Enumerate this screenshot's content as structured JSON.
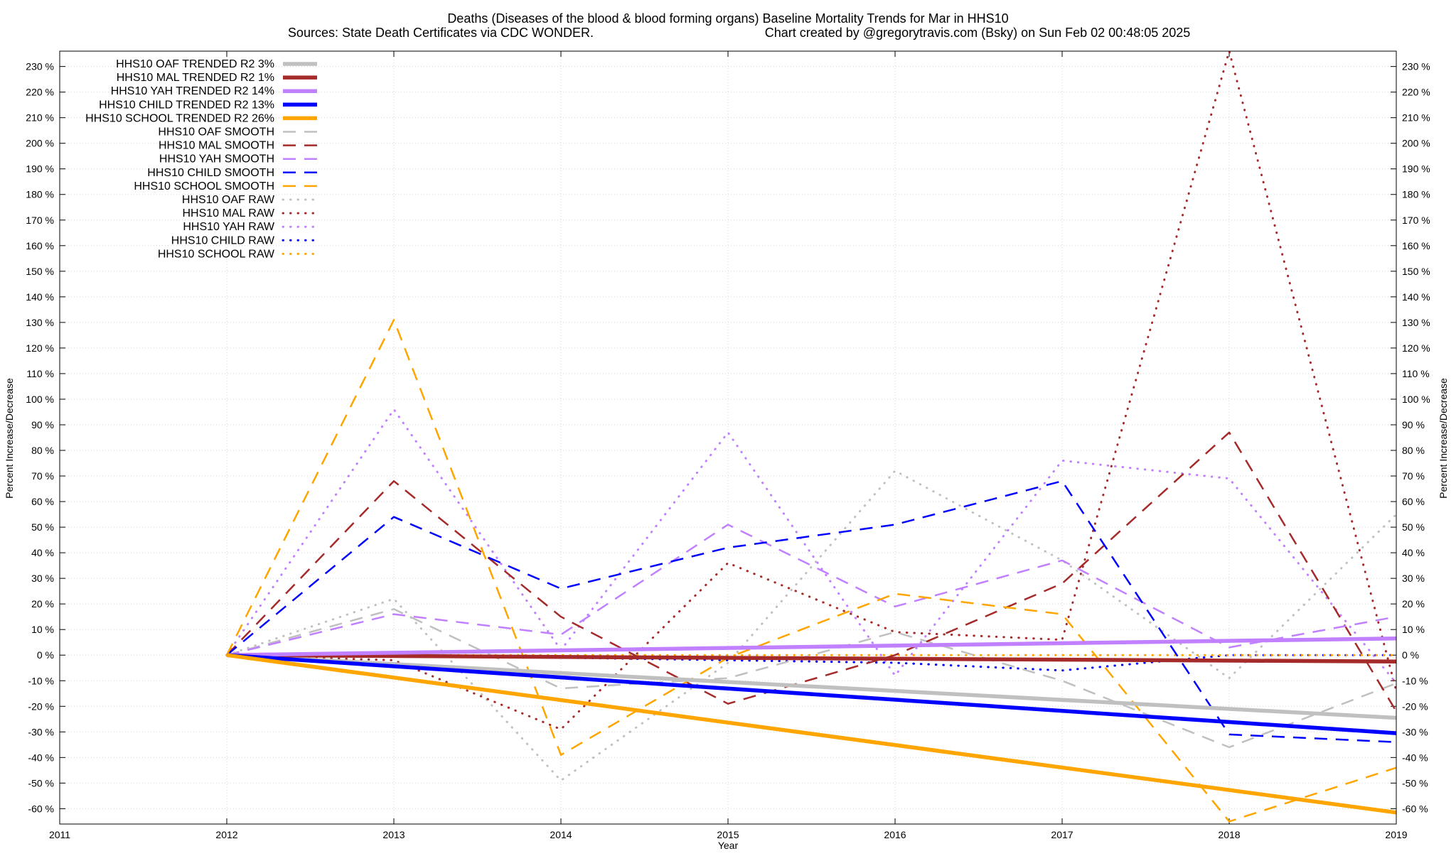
{
  "chart_data": {
    "type": "line",
    "title": "Deaths (Diseases of the blood & blood forming organs)  Baseline Mortality Trends for Mar in HHS10",
    "subtitle_left": "Sources: State Death Certificates via CDC WONDER.",
    "subtitle_right": "Chart created by @gregorytravis.com (Bsky) on Sun Feb 02 00:48:05 2025",
    "xlabel": "Year",
    "ylabel": "Percent Increase/Decrease",
    "ylabel_right": "Percent Increase/Decrease",
    "xlim": [
      2011,
      2019
    ],
    "ylim": [
      -66,
      236
    ],
    "x_ticks": [
      2011,
      2012,
      2013,
      2014,
      2015,
      2016,
      2017,
      2018,
      2019
    ],
    "y_ticks": [
      -60,
      -50,
      -40,
      -30,
      -20,
      -10,
      0,
      10,
      20,
      30,
      40,
      50,
      60,
      70,
      80,
      90,
      100,
      110,
      120,
      130,
      140,
      150,
      160,
      170,
      180,
      190,
      200,
      210,
      220,
      230
    ],
    "y_tick_suffix": " %",
    "grid": true,
    "legend_position": "top-left",
    "series": [
      {
        "name": "HHS10 OAF TRENDED R2  3%",
        "color": "#c0c0c0",
        "style": "solid",
        "x": [
          2012,
          2019
        ],
        "values": [
          0,
          -24.5
        ]
      },
      {
        "name": "HHS10 MAL TRENDED R2  1%",
        "color": "#a52a2a",
        "style": "solid",
        "x": [
          2012,
          2019
        ],
        "values": [
          0,
          -2.5
        ]
      },
      {
        "name": "HHS10 YAH TRENDED R2  14%",
        "color": "#c080ff",
        "style": "solid",
        "x": [
          2012,
          2019
        ],
        "values": [
          0,
          6.5
        ]
      },
      {
        "name": "HHS10 CHILD TRENDED R2  13%",
        "color": "#0000ff",
        "style": "solid",
        "x": [
          2012,
          2019
        ],
        "values": [
          0,
          -30.5
        ]
      },
      {
        "name": "HHS10 SCHOOL TRENDED R2  26%",
        "color": "#ffa500",
        "style": "solid",
        "x": [
          2012,
          2019
        ],
        "values": [
          0,
          -61.5
        ]
      },
      {
        "name": "HHS10 OAF SMOOTH",
        "color": "#c0c0c0",
        "style": "dashed",
        "x": [
          2012,
          2013,
          2014,
          2015,
          2016,
          2017,
          2018,
          2019
        ],
        "values": [
          0,
          18,
          -13,
          -9,
          9,
          -10,
          -36,
          -11
        ]
      },
      {
        "name": "HHS10 MAL SMOOTH",
        "color": "#a52a2a",
        "style": "dashed",
        "x": [
          2012,
          2013,
          2014,
          2015,
          2016,
          2017,
          2018,
          2019
        ],
        "values": [
          0,
          68,
          15,
          -19,
          0,
          28,
          87,
          -22
        ]
      },
      {
        "name": "HHS10 YAH SMOOTH",
        "color": "#c080ff",
        "style": "dashed",
        "x": [
          2012,
          2013,
          2014,
          2015,
          2016,
          2017,
          2018,
          2019
        ],
        "values": [
          0,
          16,
          8,
          51,
          19,
          37,
          3,
          15
        ]
      },
      {
        "name": "HHS10 CHILD SMOOTH",
        "color": "#0000ff",
        "style": "dashed",
        "x": [
          2012,
          2013,
          2014,
          2015,
          2016,
          2017,
          2018,
          2019
        ],
        "values": [
          0,
          54,
          26,
          42,
          51,
          68,
          -31,
          -34
        ]
      },
      {
        "name": "HHS10 SCHOOL SMOOTH",
        "color": "#ffa500",
        "style": "dashed",
        "x": [
          2012,
          2013,
          2014,
          2015,
          2016,
          2017,
          2018,
          2019
        ],
        "values": [
          0,
          131,
          -39,
          -1,
          24,
          16,
          -65,
          -44
        ]
      },
      {
        "name": "HHS10 OAF RAW",
        "color": "#c0c0c0",
        "style": "dotted",
        "x": [
          2012,
          2013,
          2014,
          2015,
          2016,
          2017,
          2018,
          2019
        ],
        "values": [
          0,
          22,
          -49,
          -3,
          72,
          37,
          -9,
          55
        ]
      },
      {
        "name": "HHS10 MAL RAW",
        "color": "#a52a2a",
        "style": "dotted",
        "x": [
          2012,
          2013,
          2014,
          2015,
          2016,
          2017,
          2018,
          2019
        ],
        "values": [
          0,
          -2,
          -29,
          36,
          9,
          6,
          236,
          -14
        ]
      },
      {
        "name": "HHS10 YAH RAW",
        "color": "#c080ff",
        "style": "dotted",
        "x": [
          2012,
          2013,
          2014,
          2015,
          2016,
          2017,
          2018,
          2019
        ],
        "values": [
          0,
          96,
          2,
          87,
          -8,
          76,
          69,
          -11
        ]
      },
      {
        "name": "HHS10 CHILD RAW",
        "color": "#0000ff",
        "style": "dotted",
        "x": [
          2012,
          2013,
          2014,
          2015,
          2016,
          2017,
          2018,
          2019
        ],
        "values": [
          0,
          0,
          -1,
          -2,
          -3,
          -6,
          0,
          0
        ]
      },
      {
        "name": "HHS10 SCHOOL RAW",
        "color": "#ffa500",
        "style": "dotted",
        "x": [
          2012,
          2013,
          2014,
          2015,
          2016,
          2017,
          2018,
          2019
        ],
        "values": [
          0,
          0,
          0,
          0,
          0,
          0,
          0,
          0
        ]
      }
    ]
  }
}
